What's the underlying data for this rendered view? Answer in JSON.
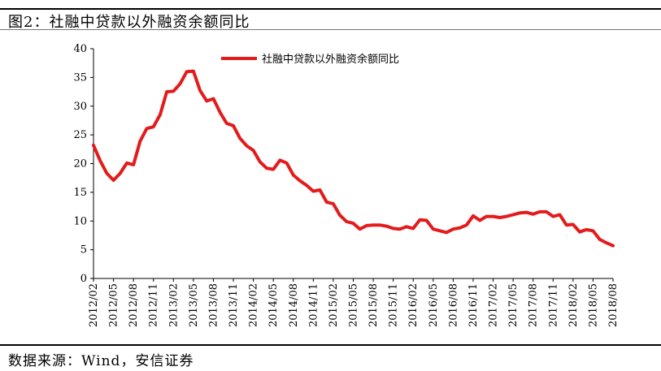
{
  "title": "图2：社融中贷款以外融资余额同比",
  "source": "数据来源：Wind，安信证券",
  "chart_data": {
    "type": "line",
    "title": "图2：社融中贷款以外融资余额同比",
    "xlabel": "",
    "ylabel": "",
    "ylim": [
      0,
      40
    ],
    "yticks": [
      0,
      5,
      10,
      15,
      20,
      25,
      30,
      35,
      40
    ],
    "grid": false,
    "legend_position": "top-center",
    "colors": {
      "series": "#e31b1b",
      "axis": "#000000"
    },
    "xtick_labels": [
      "2012/02",
      "2012/05",
      "2012/08",
      "2012/11",
      "2013/02",
      "2013/05",
      "2013/08",
      "2013/11",
      "2014/02",
      "2014/05",
      "2014/08",
      "2014/11",
      "2015/02",
      "2015/05",
      "2015/08",
      "2015/11",
      "2016/02",
      "2016/05",
      "2016/08",
      "2016/11",
      "2017/02",
      "2017/05",
      "2017/08",
      "2017/11",
      "2018/02",
      "2018/05",
      "2018/08"
    ],
    "series": [
      {
        "name": "社融中贷款以外融资余额同比",
        "values": [
          23.2,
          20.5,
          18.3,
          17.1,
          18.3,
          20.1,
          19.8,
          23.9,
          26.1,
          26.4,
          28.5,
          32.5,
          32.6,
          33.9,
          36.0,
          36.1,
          32.7,
          30.9,
          31.3,
          28.9,
          27.0,
          26.6,
          24.4,
          23.1,
          22.3,
          20.3,
          19.2,
          19.0,
          20.6,
          20.1,
          18.0,
          17.0,
          16.2,
          15.2,
          15.4,
          13.3,
          13.0,
          11.0,
          9.9,
          9.6,
          8.6,
          9.2,
          9.3,
          9.3,
          9.1,
          8.7,
          8.6,
          9.0,
          8.7,
          10.2,
          10.1,
          8.6,
          8.3,
          8.0,
          8.6,
          8.8,
          9.3,
          10.9,
          10.1,
          10.8,
          10.8,
          10.6,
          10.8,
          11.1,
          11.4,
          11.5,
          11.2,
          11.6,
          11.6,
          10.8,
          11.1,
          9.3,
          9.4,
          8.1,
          8.5,
          8.3,
          6.8,
          6.2,
          5.7
        ]
      }
    ]
  }
}
